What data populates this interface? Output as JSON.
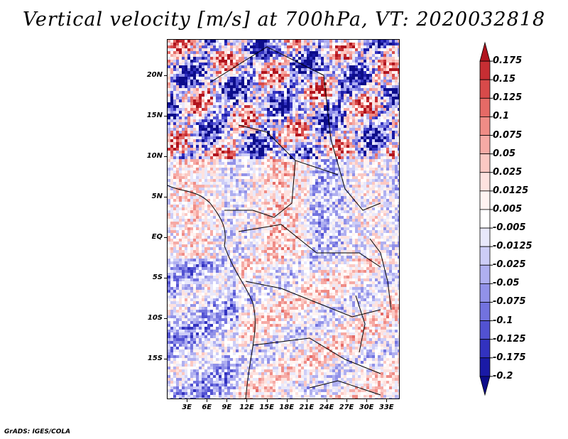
{
  "title": "Vertical velocity [m/s] at 700hPa, VT: 2020032818",
  "footer": "GrADS: IGES/COLA",
  "map": {
    "lat_labels": [
      {
        "text": "20N",
        "lat": 20
      },
      {
        "text": "15N",
        "lat": 15
      },
      {
        "text": "10N",
        "lat": 10
      },
      {
        "text": "5N",
        "lat": 5
      },
      {
        "text": "EQ",
        "lat": 0
      },
      {
        "text": "5S",
        "lat": -5
      },
      {
        "text": "10S",
        "lat": -10
      },
      {
        "text": "15S",
        "lat": -15
      }
    ],
    "lon_labels": [
      {
        "text": "3E",
        "lon": 3
      },
      {
        "text": "6E",
        "lon": 6
      },
      {
        "text": "9E",
        "lon": 9
      },
      {
        "text": "12E",
        "lon": 12
      },
      {
        "text": "15E",
        "lon": 15
      },
      {
        "text": "18E",
        "lon": 18
      },
      {
        "text": "21E",
        "lon": 21
      },
      {
        "text": "24E",
        "lon": 24
      },
      {
        "text": "27E",
        "lon": 27
      },
      {
        "text": "30E",
        "lon": 30
      },
      {
        "text": "33E",
        "lon": 33
      }
    ],
    "lat_range": [
      -20,
      24.5
    ],
    "lon_range": [
      0,
      35
    ]
  },
  "colorbar": {
    "labels": [
      "0.175",
      "0.15",
      "0.125",
      "0.1",
      "0.075",
      "0.05",
      "0.025",
      "0.0125",
      "0.005",
      "-0.005",
      "-0.0125",
      "-0.025",
      "-0.05",
      "-0.075",
      "-0.1",
      "-0.125",
      "-0.175",
      "-0.2"
    ],
    "colors": [
      "#b0141e",
      "#c62e33",
      "#d84a4a",
      "#e56a66",
      "#ef8c86",
      "#f6aaa5",
      "#fbc8c3",
      "#fde2df",
      "#fff3f1",
      "#ffffff",
      "#e8e8fb",
      "#cdcdf7",
      "#afaff0",
      "#9191e8",
      "#7272df",
      "#5252d2",
      "#3232bf",
      "#1a1aa6",
      "#0c0c8a"
    ]
  },
  "icons": {
    "map_field": "vertical-velocity-field",
    "colorbar": "vertical-colorbar"
  }
}
